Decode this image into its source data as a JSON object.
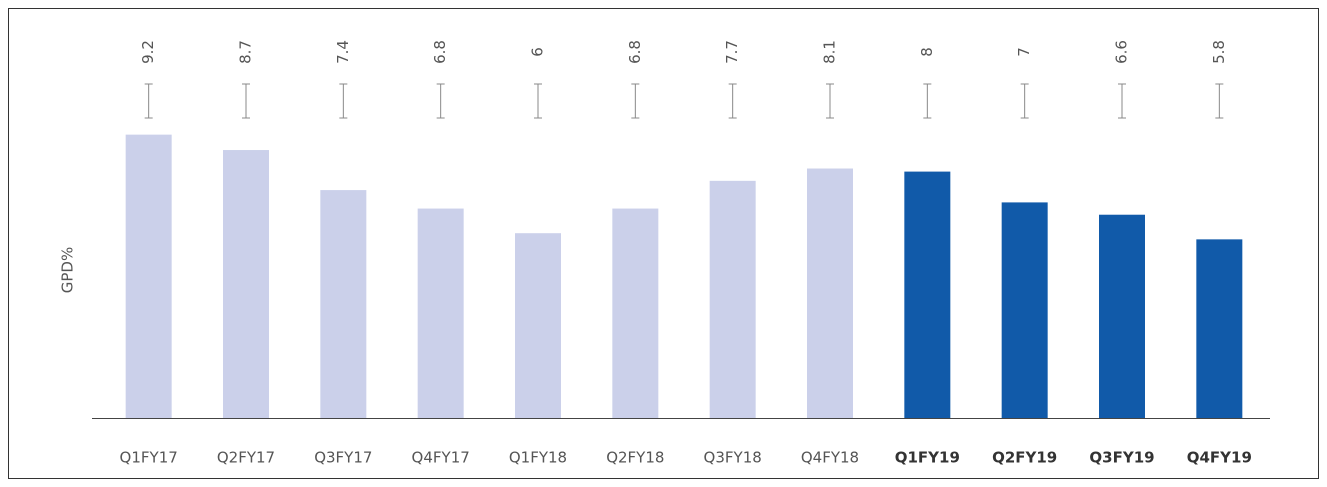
{
  "chart_data": {
    "type": "bar",
    "y_label": "GPD%",
    "categories": [
      "Q1FY17",
      "Q2FY17",
      "Q3FY17",
      "Q4FY17",
      "Q1FY18",
      "Q2FY18",
      "Q3FY18",
      "Q4FY18",
      "Q1FY19",
      "Q2FY19",
      "Q3FY19",
      "Q4FY19"
    ],
    "values": [
      9.2,
      8.7,
      7.4,
      6.8,
      6,
      6.8,
      7.7,
      8.1,
      8,
      7,
      6.6,
      5.8
    ],
    "color": "#cbd0ea",
    "highlight_color": "#115aa9",
    "highlight": [
      false,
      false,
      false,
      false,
      false,
      false,
      false,
      false,
      true,
      true,
      true,
      true
    ],
    "ylim": [
      0,
      10
    ]
  }
}
